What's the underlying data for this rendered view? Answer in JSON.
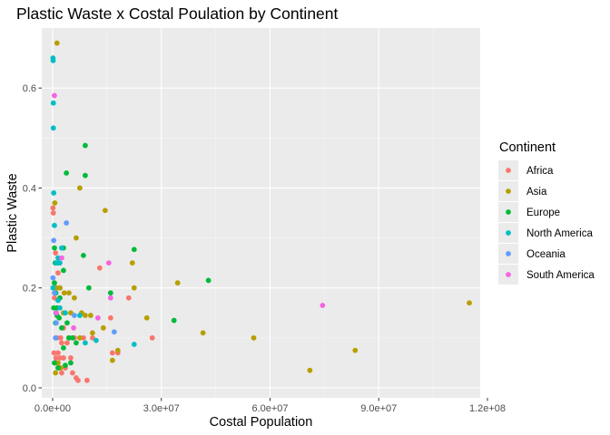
{
  "chart_data": {
    "type": "scatter",
    "title": "Plastic Waste x Costal Poulation by Continent",
    "xlabel": "Costal Population",
    "ylabel": "Plastic Waste",
    "xlim": [
      -3000000,
      118000000
    ],
    "ylim": [
      -0.02,
      0.72
    ],
    "x_ticks": [
      0,
      30000000,
      60000000,
      90000000,
      120000000
    ],
    "x_tick_labels": [
      "0.0e+00",
      "3.0e+07",
      "6.0e+07",
      "9.0e+07",
      "1.2e+08"
    ],
    "y_ticks": [
      0.0,
      0.2,
      0.4,
      0.6
    ],
    "y_tick_labels": [
      "0.0",
      "0.2",
      "0.4",
      "0.6"
    ],
    "grid": true,
    "legend_title": "Continent",
    "legend_position": "right",
    "colors": {
      "Africa": "#F8766D",
      "Asia": "#B79F00",
      "Europe": "#00BA38",
      "North America": "#00BFC4",
      "Oceania": "#619CFF",
      "South America": "#F564E3"
    },
    "series": [
      {
        "name": "Africa",
        "color": "#F8766D",
        "points": [
          [
            100000,
            0.36
          ],
          [
            200000,
            0.35
          ],
          [
            800000,
            0.27
          ],
          [
            1500000,
            0.23
          ],
          [
            1000000,
            0.2
          ],
          [
            2000000,
            0.2
          ],
          [
            500000,
            0.18
          ],
          [
            3000000,
            0.12
          ],
          [
            1200000,
            0.1
          ],
          [
            2500000,
            0.09
          ],
          [
            4000000,
            0.09
          ],
          [
            6000000,
            0.1
          ],
          [
            1500000,
            0.07
          ],
          [
            2000000,
            0.06
          ],
          [
            3000000,
            0.06
          ],
          [
            800000,
            0.05
          ],
          [
            1800000,
            0.04
          ],
          [
            2500000,
            0.03
          ],
          [
            3500000,
            0.04
          ],
          [
            5500000,
            0.03
          ],
          [
            6500000,
            0.02
          ],
          [
            7000000,
            0.015
          ],
          [
            9500000,
            0.015
          ],
          [
            5000000,
            0.06
          ],
          [
            8500000,
            0.1
          ],
          [
            13000000,
            0.24
          ],
          [
            16000000,
            0.14
          ],
          [
            21000000,
            0.18
          ],
          [
            16500000,
            0.07
          ],
          [
            18000000,
            0.07
          ],
          [
            27500000,
            0.1
          ],
          [
            11000000,
            0.1
          ],
          [
            2200000,
            0.1
          ],
          [
            900000,
            0.06
          ],
          [
            400000,
            0.07
          ]
        ]
      },
      {
        "name": "Asia",
        "color": "#B79F00",
        "points": [
          [
            1200000,
            0.69
          ],
          [
            600000,
            0.37
          ],
          [
            7500000,
            0.4
          ],
          [
            14500000,
            0.355
          ],
          [
            6500000,
            0.3
          ],
          [
            22000000,
            0.25
          ],
          [
            22500000,
            0.2
          ],
          [
            34500000,
            0.21
          ],
          [
            1000000,
            0.2
          ],
          [
            2000000,
            0.2
          ],
          [
            3200000,
            0.19
          ],
          [
            4500000,
            0.19
          ],
          [
            6000000,
            0.18
          ],
          [
            8000000,
            0.15
          ],
          [
            5000000,
            0.15
          ],
          [
            9000000,
            0.145
          ],
          [
            10500000,
            0.145
          ],
          [
            14000000,
            0.12
          ],
          [
            26000000,
            0.14
          ],
          [
            3000000,
            0.15
          ],
          [
            11000000,
            0.11
          ],
          [
            4500000,
            0.1
          ],
          [
            7500000,
            0.1
          ],
          [
            41500000,
            0.11
          ],
          [
            55500000,
            0.1
          ],
          [
            18000000,
            0.075
          ],
          [
            16500000,
            0.055
          ],
          [
            83500000,
            0.075
          ],
          [
            71000000,
            0.035
          ],
          [
            115000000,
            0.17
          ],
          [
            800000,
            0.03
          ],
          [
            1500000,
            0.05
          ],
          [
            2200000,
            0.04
          ]
        ]
      },
      {
        "name": "Europe",
        "color": "#00BA38",
        "points": [
          [
            9000000,
            0.485
          ],
          [
            3800000,
            0.43
          ],
          [
            9000000,
            0.425
          ],
          [
            500000,
            0.28
          ],
          [
            3000000,
            0.28
          ],
          [
            8500000,
            0.265
          ],
          [
            22500000,
            0.277
          ],
          [
            43000000,
            0.215
          ],
          [
            1500000,
            0.25
          ],
          [
            3000000,
            0.235
          ],
          [
            500000,
            0.21
          ],
          [
            900000,
            0.19
          ],
          [
            2000000,
            0.18
          ],
          [
            16000000,
            0.19
          ],
          [
            10000000,
            0.2
          ],
          [
            1200000,
            0.16
          ],
          [
            300000,
            0.16
          ],
          [
            1800000,
            0.14
          ],
          [
            800000,
            0.13
          ],
          [
            2500000,
            0.12
          ],
          [
            4000000,
            0.13
          ],
          [
            4500000,
            0.1
          ],
          [
            5500000,
            0.1
          ],
          [
            6500000,
            0.09
          ],
          [
            33500000,
            0.135
          ],
          [
            3000000,
            0.08
          ],
          [
            5000000,
            0.05
          ],
          [
            500000,
            0.05
          ],
          [
            1500000,
            0.04
          ],
          [
            3500000,
            0.045
          ],
          [
            700000,
            0.25
          ],
          [
            1200000,
            0.145
          ]
        ]
      },
      {
        "name": "North America",
        "color": "#00BFC4",
        "points": [
          [
            100000,
            0.66
          ],
          [
            150000,
            0.655
          ],
          [
            200000,
            0.57
          ],
          [
            200000,
            0.52
          ],
          [
            300000,
            0.39
          ],
          [
            500000,
            0.325
          ],
          [
            2500000,
            0.28
          ],
          [
            1000000,
            0.25
          ],
          [
            2000000,
            0.25
          ],
          [
            100000,
            0.2
          ],
          [
            600000,
            0.19
          ],
          [
            1500000,
            0.175
          ],
          [
            2000000,
            0.16
          ],
          [
            900000,
            0.15
          ],
          [
            7500000,
            0.145
          ],
          [
            12000000,
            0.095
          ],
          [
            9000000,
            0.09
          ],
          [
            22500000,
            0.087
          ],
          [
            1500000,
            0.26
          ],
          [
            3500000,
            0.15
          ]
        ]
      },
      {
        "name": "Oceania",
        "color": "#619CFF",
        "points": [
          [
            3800000,
            0.33
          ],
          [
            300000,
            0.295
          ],
          [
            100000,
            0.22
          ],
          [
            500000,
            0.19
          ],
          [
            1000000,
            0.13
          ],
          [
            17000000,
            0.112
          ],
          [
            800000,
            0.1
          ],
          [
            6000000,
            0.145
          ]
        ]
      },
      {
        "name": "South America",
        "color": "#F564E3",
        "points": [
          [
            500000,
            0.585
          ],
          [
            2500000,
            0.26
          ],
          [
            15500000,
            0.25
          ],
          [
            16000000,
            0.18
          ],
          [
            12500000,
            0.14
          ],
          [
            5800000,
            0.12
          ],
          [
            74500000,
            0.165
          ],
          [
            1000000,
            0.15
          ]
        ]
      }
    ]
  }
}
